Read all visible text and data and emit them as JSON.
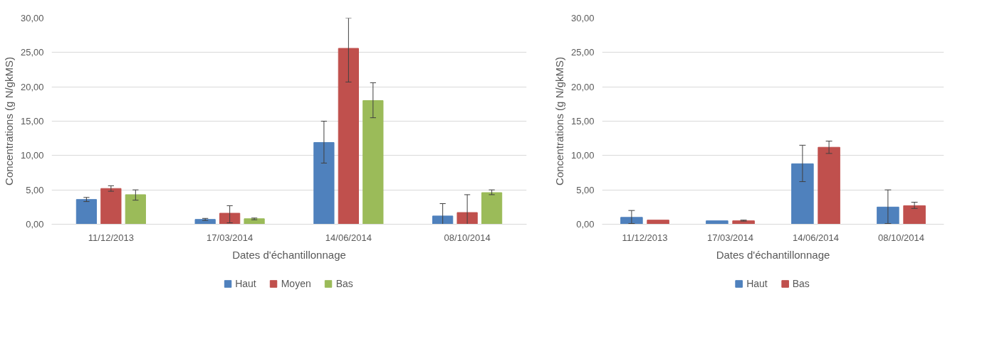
{
  "chart_data": [
    {
      "type": "bar",
      "xlabel": "Dates d'échantillonnage",
      "ylabel": "Concentrations (g N/gkMS)",
      "categories": [
        "11/12/2013",
        "17/03/2014",
        "14/06/2014",
        "08/10/2014"
      ],
      "series": [
        {
          "name": "Haut",
          "color": "#4f81bd",
          "values": [
            3.6,
            0.7,
            11.9,
            1.2
          ],
          "errors": [
            [
              3.3,
              3.9
            ],
            [
              0.55,
              0.85
            ],
            [
              8.9,
              15.0
            ],
            [
              0,
              3.0
            ]
          ]
        },
        {
          "name": "Moyen",
          "color": "#c0504d",
          "values": [
            5.2,
            1.6,
            25.6,
            1.7
          ],
          "errors": [
            [
              4.8,
              5.6
            ],
            [
              0.2,
              2.7
            ],
            [
              20.7,
              30.0
            ],
            [
              0,
              4.3
            ]
          ]
        },
        {
          "name": "Bas",
          "color": "#9bbb59",
          "values": [
            4.3,
            0.8,
            18.0,
            4.6
          ],
          "errors": [
            [
              3.5,
              5.0
            ],
            [
              0.65,
              0.9
            ],
            [
              15.5,
              20.6
            ],
            [
              4.3,
              5.0
            ]
          ]
        }
      ],
      "ylim": [
        0,
        30
      ],
      "yticks": [
        {
          "value": 0,
          "label": "0,00"
        },
        {
          "value": 5,
          "label": "5,00"
        },
        {
          "value": 10,
          "label": "10,00"
        },
        {
          "value": 15,
          "label": "15,00"
        },
        {
          "value": 20,
          "label": "20,00"
        },
        {
          "value": 25,
          "label": "25,00"
        },
        {
          "value": 30,
          "label": "30,00"
        }
      ],
      "grid": "y",
      "legend": "bottom"
    },
    {
      "type": "bar",
      "xlabel": "Dates d'échantillonnage",
      "ylabel": "Concentrations (g N/gkMS)",
      "categories": [
        "11/12/2013",
        "17/03/2014",
        "14/06/2014",
        "08/10/2014"
      ],
      "series": [
        {
          "name": "Haut",
          "color": "#4f81bd",
          "values": [
            1.0,
            0.5,
            8.8,
            2.5
          ],
          "errors": [
            [
              0.1,
              2.0
            ],
            null,
            [
              6.2,
              11.5
            ],
            [
              0.1,
              5.0
            ]
          ]
        },
        {
          "name": "Bas",
          "color": "#c0504d",
          "values": [
            0.6,
            0.5,
            11.2,
            2.7
          ],
          "errors": [
            null,
            [
              0.45,
              0.6
            ],
            [
              10.3,
              12.1
            ],
            [
              2.3,
              3.2
            ]
          ]
        }
      ],
      "ylim": [
        0,
        30
      ],
      "yticks": [
        {
          "value": 0,
          "label": "0,00"
        },
        {
          "value": 5,
          "label": "5,00"
        },
        {
          "value": 10,
          "label": "10,00"
        },
        {
          "value": 15,
          "label": "15,00"
        },
        {
          "value": 20,
          "label": "20,00"
        },
        {
          "value": 25,
          "label": "25,00"
        },
        {
          "value": 30,
          "label": "30,00"
        }
      ],
      "grid": "y",
      "legend": "bottom"
    }
  ]
}
